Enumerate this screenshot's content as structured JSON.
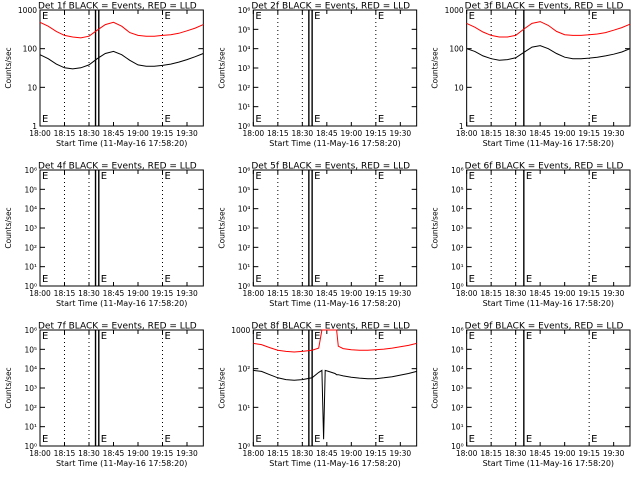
{
  "colors": {
    "events": "#000000",
    "lld": "#ff0000",
    "axis": "#000000"
  },
  "chart_data": [
    {
      "type": "line",
      "title": "Det 1f BLACK = Events, RED = LLD",
      "xlabel": "Start Time (11-May-16 17:58:20)",
      "ylabel": "Counts/sec",
      "xlim": [
        "18:00",
        "19:40"
      ],
      "xticks": [
        "18:00",
        "18:15",
        "18:30",
        "18:45",
        "19:00",
        "19:15",
        "19:30"
      ],
      "yscale": "log",
      "ylim": [
        1,
        1000
      ],
      "yticks": [
        "1",
        "10",
        "100",
        "1000"
      ],
      "dotted_lines": [
        "18:15",
        "18:30",
        "19:15"
      ],
      "solid_lines": [
        "18:34",
        "18:36"
      ],
      "flags": [
        {
          "x": "18:00",
          "text": "E"
        },
        {
          "x": "19:15",
          "text": "E"
        }
      ],
      "series": [
        {
          "name": "LLD",
          "color": "red",
          "x": [
            "18:00",
            "18:05",
            "18:10",
            "18:15",
            "18:20",
            "18:25",
            "18:30",
            "18:35",
            "18:40",
            "18:45",
            "18:50",
            "18:55",
            "19:00",
            "19:05",
            "19:10",
            "19:15",
            "19:20",
            "19:25",
            "19:30",
            "19:35",
            "19:40"
          ],
          "values": [
            480,
            380,
            280,
            220,
            200,
            190,
            210,
            300,
            420,
            480,
            380,
            260,
            220,
            210,
            210,
            220,
            230,
            250,
            290,
            340,
            420
          ]
        },
        {
          "name": "Events",
          "color": "black",
          "x": [
            "18:00",
            "18:05",
            "18:10",
            "18:15",
            "18:20",
            "18:25",
            "18:30",
            "18:35",
            "18:40",
            "18:45",
            "18:50",
            "18:55",
            "19:00",
            "19:05",
            "19:10",
            "19:15",
            "19:20",
            "19:25",
            "19:30",
            "19:35",
            "19:40"
          ],
          "values": [
            70,
            55,
            40,
            32,
            30,
            32,
            38,
            55,
            75,
            85,
            70,
            50,
            38,
            35,
            35,
            37,
            40,
            45,
            52,
            62,
            75
          ]
        }
      ]
    },
    {
      "type": "line",
      "title": "Det 2f BLACK = Events, RED = LLD",
      "xlabel": "Start Time (11-May-16 17:58:20)",
      "ylabel": "Counts/sec",
      "xlim": [
        "18:00",
        "19:40"
      ],
      "xticks": [
        "18:00",
        "18:15",
        "18:30",
        "18:45",
        "19:00",
        "19:15",
        "19:30"
      ],
      "yscale": "log",
      "ylim": [
        1,
        1000000
      ],
      "yticks": [
        "10⁰",
        "10¹",
        "10²",
        "10³",
        "10⁴",
        "10⁵",
        "10⁶"
      ],
      "dotted_lines": [
        "18:15",
        "18:30",
        "19:15"
      ],
      "solid_lines": [
        "18:34",
        "18:36"
      ],
      "flags": [
        {
          "x": "18:00",
          "text": "E"
        },
        {
          "x": "18:36",
          "text": "E"
        },
        {
          "x": "19:15",
          "text": "E"
        }
      ],
      "series": []
    },
    {
      "type": "line",
      "title": "Det 3f BLACK = Events, RED = LLD",
      "xlabel": "Start Time (11-May-16 17:58:20)",
      "ylabel": "Counts/sec",
      "xlim": [
        "18:00",
        "19:40"
      ],
      "xticks": [
        "18:00",
        "18:15",
        "18:30",
        "18:45",
        "19:00",
        "19:15",
        "19:30"
      ],
      "yscale": "log",
      "ylim": [
        1,
        1000
      ],
      "yticks": [
        "1",
        "10",
        "100",
        "1000"
      ],
      "dotted_lines": [
        "18:15",
        "18:30",
        "19:15"
      ],
      "solid_lines": [
        "18:35"
      ],
      "flags": [
        {
          "x": "18:00",
          "text": "E"
        },
        {
          "x": "19:15",
          "text": "E"
        }
      ],
      "series": [
        {
          "name": "LLD",
          "color": "red",
          "x": [
            "18:00",
            "18:05",
            "18:10",
            "18:15",
            "18:20",
            "18:25",
            "18:30",
            "18:35",
            "18:40",
            "18:45",
            "18:50",
            "18:55",
            "19:00",
            "19:05",
            "19:10",
            "19:15",
            "19:20",
            "19:25",
            "19:30",
            "19:35",
            "19:40"
          ],
          "values": [
            450,
            360,
            270,
            220,
            200,
            200,
            220,
            320,
            450,
            500,
            400,
            280,
            230,
            220,
            220,
            230,
            240,
            260,
            300,
            350,
            430
          ]
        },
        {
          "name": "Events",
          "color": "black",
          "x": [
            "18:00",
            "18:05",
            "18:10",
            "18:15",
            "18:20",
            "18:25",
            "18:30",
            "18:35",
            "18:40",
            "18:45",
            "18:50",
            "18:55",
            "19:00",
            "19:05",
            "19:10",
            "19:15",
            "19:20",
            "19:25",
            "19:30",
            "19:35",
            "19:40"
          ],
          "values": [
            100,
            85,
            65,
            55,
            50,
            52,
            58,
            80,
            110,
            120,
            100,
            75,
            60,
            55,
            55,
            57,
            60,
            65,
            72,
            82,
            100
          ]
        }
      ]
    },
    {
      "type": "line",
      "title": "Det 4f BLACK = Events, RED = LLD",
      "xlabel": "Start Time (11-May-16 17:58:20)",
      "ylabel": "Counts/sec",
      "xlim": [
        "18:00",
        "19:40"
      ],
      "xticks": [
        "18:00",
        "18:15",
        "18:30",
        "18:45",
        "19:00",
        "19:15",
        "19:30"
      ],
      "yscale": "log",
      "ylim": [
        1,
        1000000
      ],
      "yticks": [
        "10⁰",
        "10¹",
        "10²",
        "10³",
        "10⁴",
        "10⁵",
        "10⁶"
      ],
      "dotted_lines": [
        "18:15",
        "18:30",
        "19:15"
      ],
      "solid_lines": [
        "18:34",
        "18:36"
      ],
      "flags": [
        {
          "x": "18:00",
          "text": "E"
        },
        {
          "x": "18:36",
          "text": "E"
        },
        {
          "x": "19:15",
          "text": "E"
        }
      ],
      "series": []
    },
    {
      "type": "line",
      "title": "Det 5f BLACK = Events, RED = LLD",
      "xlabel": "Start Time (11-May-16 17:58:20)",
      "ylabel": "Counts/sec",
      "xlim": [
        "18:00",
        "19:40"
      ],
      "xticks": [
        "18:00",
        "18:15",
        "18:30",
        "18:45",
        "19:00",
        "19:15",
        "19:30"
      ],
      "yscale": "log",
      "ylim": [
        1,
        1000000
      ],
      "yticks": [
        "10⁰",
        "10¹",
        "10²",
        "10³",
        "10⁴",
        "10⁵",
        "10⁶"
      ],
      "dotted_lines": [
        "18:15",
        "18:30",
        "19:15"
      ],
      "solid_lines": [
        "18:34",
        "18:36"
      ],
      "flags": [
        {
          "x": "18:00",
          "text": "E"
        },
        {
          "x": "18:36",
          "text": "E"
        },
        {
          "x": "19:15",
          "text": "E"
        }
      ],
      "series": []
    },
    {
      "type": "line",
      "title": "Det 6f BLACK = Events, RED = LLD",
      "xlabel": "Start Time (11-May-16 17:58:20)",
      "ylabel": "Counts/sec",
      "xlim": [
        "18:00",
        "19:40"
      ],
      "xticks": [
        "18:00",
        "18:15",
        "18:30",
        "18:45",
        "19:00",
        "19:15",
        "19:30"
      ],
      "yscale": "log",
      "ylim": [
        1,
        1000000
      ],
      "yticks": [
        "10⁰",
        "10¹",
        "10²",
        "10³",
        "10⁴",
        "10⁵",
        "10⁶"
      ],
      "dotted_lines": [
        "18:15",
        "18:30",
        "19:15"
      ],
      "solid_lines": [
        "18:35"
      ],
      "flags": [
        {
          "x": "18:00",
          "text": "E"
        },
        {
          "x": "18:35",
          "text": "E"
        },
        {
          "x": "19:15",
          "text": "E"
        }
      ],
      "series": []
    },
    {
      "type": "line",
      "title": "Det 7f BLACK = Events, RED = LLD",
      "xlabel": "Start Time (11-May-16 17:58:20)",
      "ylabel": "Counts/sec",
      "xlim": [
        "18:00",
        "19:40"
      ],
      "xticks": [
        "18:00",
        "18:15",
        "18:30",
        "18:45",
        "19:00",
        "19:15",
        "19:30"
      ],
      "yscale": "log",
      "ylim": [
        1,
        1000000
      ],
      "yticks": [
        "10⁰",
        "10¹",
        "10²",
        "10³",
        "10⁴",
        "10⁵",
        "10⁶"
      ],
      "dotted_lines": [
        "18:15",
        "18:30",
        "19:15"
      ],
      "solid_lines": [
        "18:34",
        "18:36"
      ],
      "flags": [
        {
          "x": "18:00",
          "text": "E"
        },
        {
          "x": "18:36",
          "text": "E"
        },
        {
          "x": "19:15",
          "text": "E"
        }
      ],
      "series": []
    },
    {
      "type": "line",
      "title": "Det 8f BLACK = Events, RED = LLD",
      "xlabel": "Start Time (11-May-16 17:58:20)",
      "ylabel": "Counts/sec",
      "xlim": [
        "18:00",
        "19:40"
      ],
      "xticks": [
        "18:00",
        "18:15",
        "18:30",
        "18:45",
        "19:00",
        "19:15",
        "19:30"
      ],
      "yscale": "log",
      "ylim": [
        1,
        1000
      ],
      "yticks": [
        "10⁰",
        "10¹",
        "10²",
        "1000"
      ],
      "dotted_lines": [
        "18:15",
        "18:30",
        "19:15"
      ],
      "solid_lines": [
        "18:34",
        "18:36"
      ],
      "flags": [
        {
          "x": "18:00",
          "text": "E"
        },
        {
          "x": "18:36",
          "text": "E"
        },
        {
          "x": "19:15",
          "text": "E"
        }
      ],
      "series": [
        {
          "name": "LLD",
          "color": "red",
          "x": [
            "18:00",
            "18:05",
            "18:10",
            "18:15",
            "18:20",
            "18:25",
            "18:30",
            "18:36",
            "18:40",
            "18:42",
            "18:43",
            "18:44",
            "18:46",
            "18:50",
            "18:51",
            "18:52",
            "18:55",
            "19:00",
            "19:05",
            "19:10",
            "19:15",
            "19:20",
            "19:25",
            "19:30",
            "19:35",
            "19:40"
          ],
          "values": [
            450,
            420,
            350,
            300,
            280,
            270,
            280,
            300,
            340,
            1000,
            1000,
            1000,
            1000,
            1000,
            1000,
            380,
            330,
            310,
            300,
            300,
            310,
            320,
            340,
            370,
            400,
            450
          ]
        },
        {
          "name": "Events",
          "color": "black",
          "x": [
            "18:00",
            "18:05",
            "18:10",
            "18:15",
            "18:20",
            "18:25",
            "18:30",
            "18:36",
            "18:40",
            "18:42",
            "18:43",
            "18:44",
            "18:46",
            "18:50",
            "18:51",
            "18:52",
            "18:55",
            "19:00",
            "19:05",
            "19:10",
            "19:15",
            "19:20",
            "19:25",
            "19:30",
            "19:35",
            "19:40"
          ],
          "values": [
            90,
            85,
            70,
            58,
            52,
            50,
            52,
            58,
            80,
            90,
            1.5,
            90,
            85,
            75,
            70,
            70,
            65,
            60,
            57,
            55,
            55,
            58,
            62,
            68,
            75,
            85
          ]
        }
      ]
    },
    {
      "type": "line",
      "title": "Det 9f BLACK = Events, RED = LLD",
      "xlabel": "Start Time (11-May-16 17:58:20)",
      "ylabel": "Counts/sec",
      "xlim": [
        "18:00",
        "19:40"
      ],
      "xticks": [
        "18:00",
        "18:15",
        "18:30",
        "18:45",
        "19:00",
        "19:15",
        "19:30"
      ],
      "yscale": "log",
      "ylim": [
        1,
        1000000
      ],
      "yticks": [
        "10⁰",
        "10¹",
        "10²",
        "10³",
        "10⁴",
        "10⁵",
        "10⁶"
      ],
      "dotted_lines": [
        "18:15",
        "18:30",
        "19:15"
      ],
      "solid_lines": [
        "18:35"
      ],
      "flags": [
        {
          "x": "18:00",
          "text": "E"
        },
        {
          "x": "18:35",
          "text": "E"
        },
        {
          "x": "19:15",
          "text": "E"
        }
      ],
      "series": []
    }
  ]
}
